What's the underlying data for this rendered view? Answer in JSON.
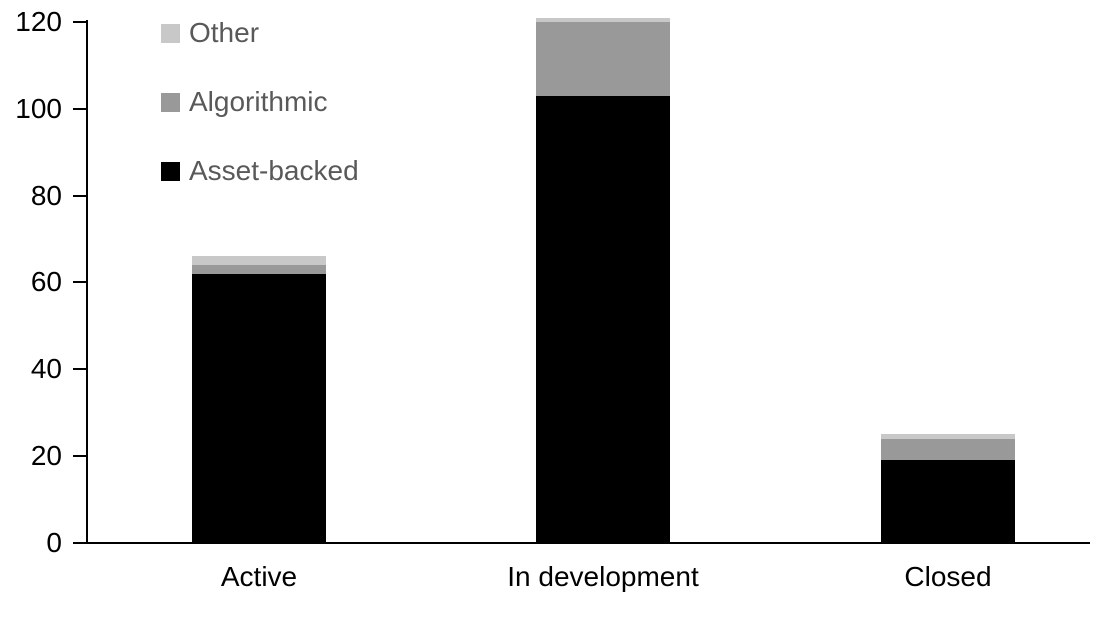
{
  "chart_data": {
    "type": "bar",
    "stacked": true,
    "title": "",
    "xlabel": "",
    "ylabel": "",
    "categories": [
      "Active",
      "In development",
      "Closed"
    ],
    "series": [
      {
        "name": "Asset-backed",
        "color": "#000000",
        "values": [
          62,
          103,
          19
        ]
      },
      {
        "name": "Algorithmic",
        "color": "#999999",
        "values": [
          2,
          17,
          5
        ]
      },
      {
        "name": "Other",
        "color": "#c8c8c8",
        "values": [
          2,
          1,
          1
        ]
      }
    ],
    "ylim": [
      0,
      120
    ],
    "yticks": [
      0,
      20,
      40,
      60,
      80,
      100,
      120
    ],
    "grid": false,
    "legend": {
      "position": "top-left",
      "order": [
        "Other",
        "Algorithmic",
        "Asset-backed"
      ],
      "text_color": "#595959"
    },
    "axis_color": "#000000"
  }
}
